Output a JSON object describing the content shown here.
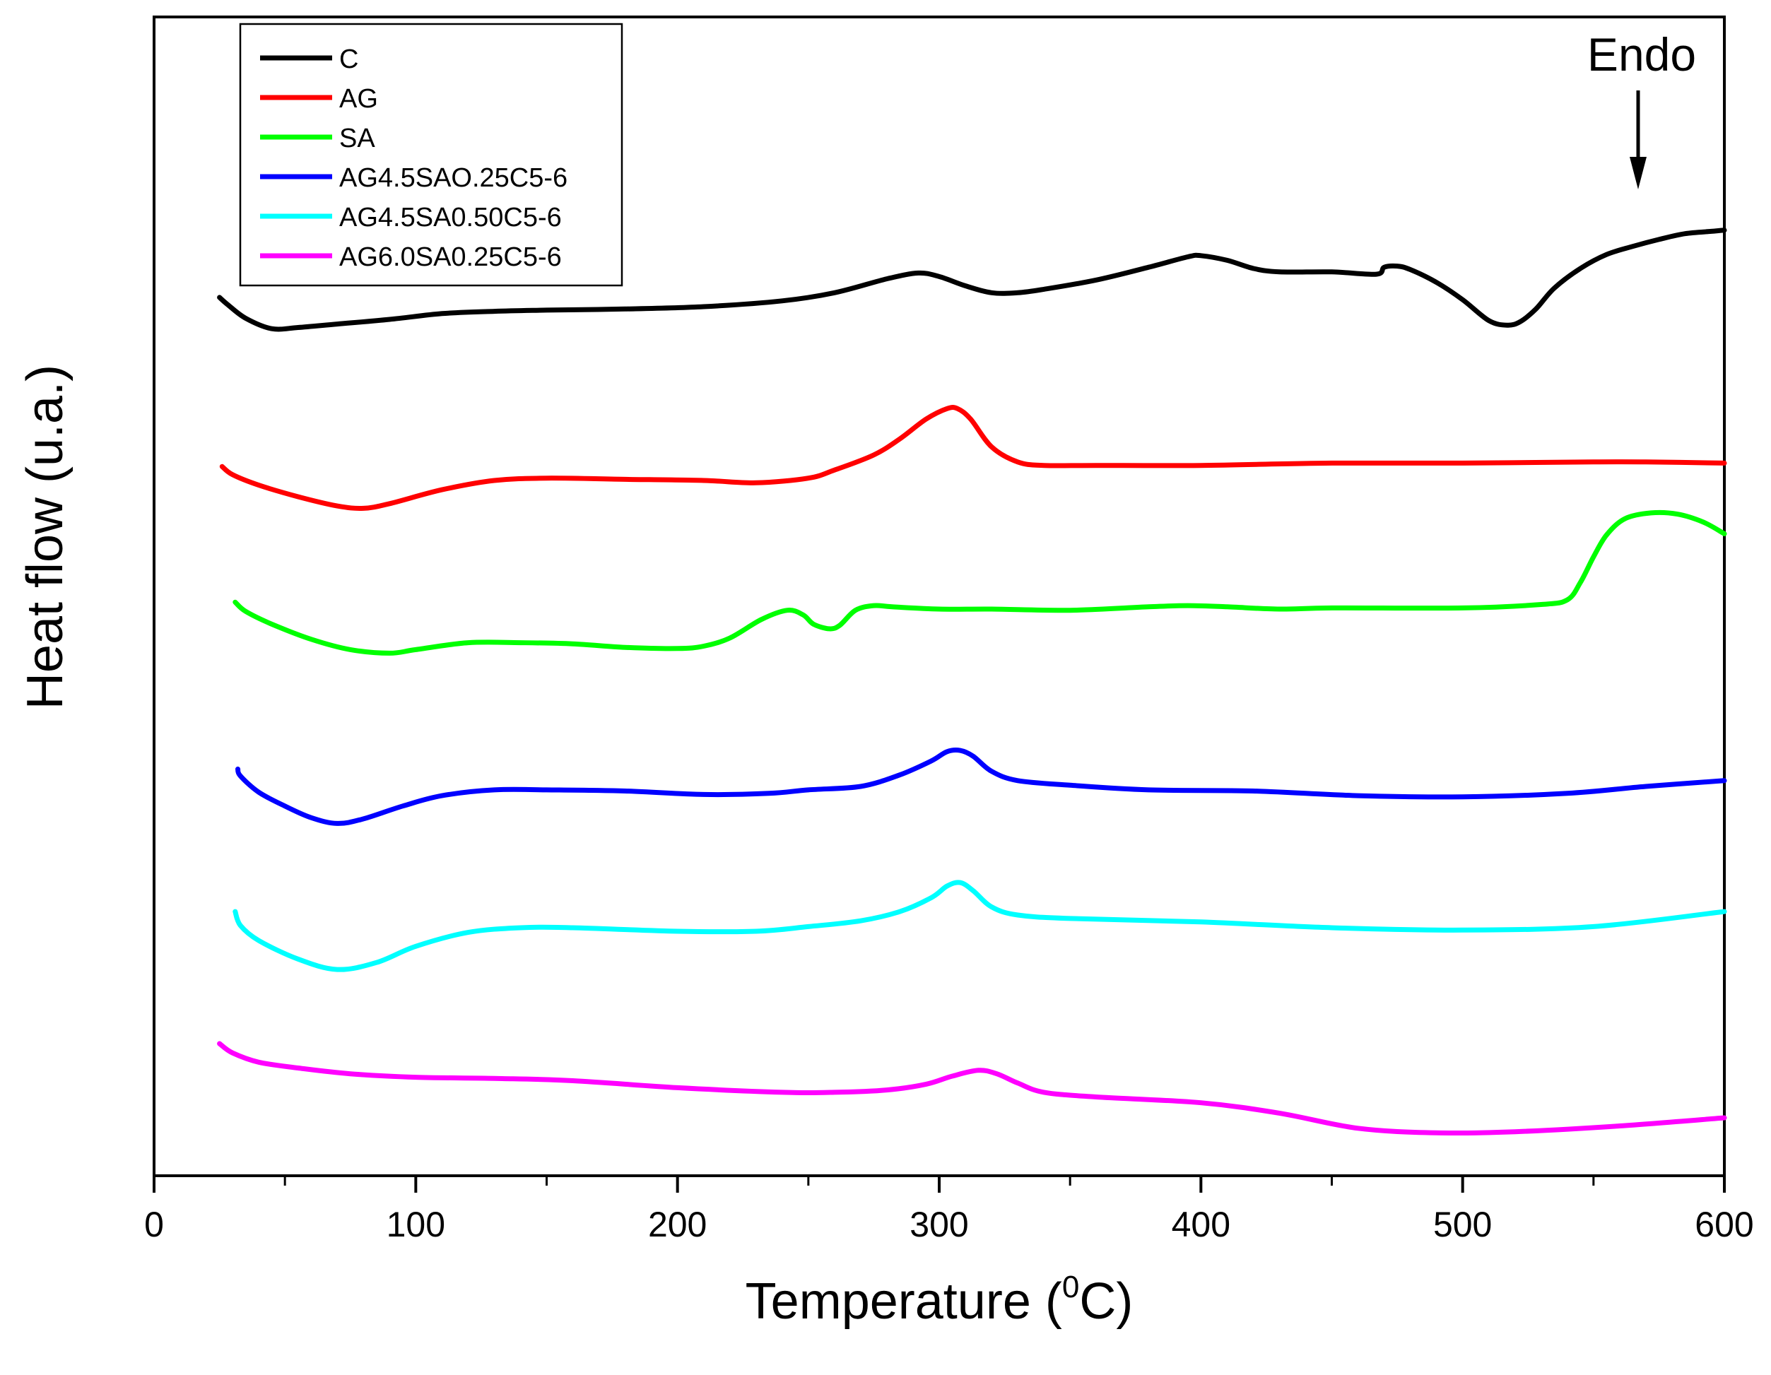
{
  "chart_data": {
    "type": "line",
    "title": "",
    "xlabel": "Temperature (",
    "xlabel_sup": "0",
    "xlabel_unit": "C)",
    "ylabel": "Heat flow (u.a.)",
    "xlim": [
      0,
      600
    ],
    "ylim": [
      0,
      100
    ],
    "x_ticks": [
      0,
      100,
      200,
      300,
      400,
      500,
      600
    ],
    "x_tick_labels": [
      "0",
      "100",
      "200",
      "300",
      "400",
      "500",
      "600"
    ],
    "y_ticks_shown": false,
    "grid": false,
    "legend_position": "top-left",
    "annotation": {
      "text": "Endo",
      "x": 566,
      "arrow": "down"
    },
    "series": [
      {
        "name": "C",
        "color": "#000000",
        "x": [
          25,
          28,
          35,
          45,
          55,
          70,
          90,
          110,
          130,
          150,
          180,
          210,
          240,
          260,
          280,
          292,
          300,
          310,
          320,
          330,
          340,
          360,
          380,
          395,
          400,
          410,
          420,
          430,
          450,
          467,
          470,
          475,
          480,
          490,
          500,
          510,
          517,
          522,
          528,
          535,
          545,
          555,
          565,
          575,
          585,
          595,
          600
        ],
        "y": [
          75.8,
          75.2,
          74.0,
          73.1,
          73.2,
          73.5,
          73.9,
          74.4,
          74.6,
          74.7,
          74.8,
          75.0,
          75.5,
          76.2,
          77.4,
          77.9,
          77.6,
          76.8,
          76.2,
          76.2,
          76.5,
          77.3,
          78.4,
          79.3,
          79.4,
          79.0,
          78.3,
          78.0,
          78.0,
          77.8,
          78.4,
          78.5,
          78.2,
          77.1,
          75.6,
          73.8,
          73.4,
          73.7,
          74.8,
          76.6,
          78.3,
          79.5,
          80.2,
          80.8,
          81.3,
          81.5,
          81.6
        ]
      },
      {
        "name": "AG",
        "color": "#ff0000",
        "x": [
          26,
          30,
          40,
          55,
          70,
          80,
          90,
          110,
          130,
          150,
          180,
          210,
          230,
          250,
          260,
          275,
          285,
          295,
          303,
          307,
          312,
          320,
          330,
          340,
          360,
          400,
          450,
          500,
          550,
          570,
          600
        ],
        "y": [
          61.2,
          60.5,
          59.6,
          58.6,
          57.8,
          57.6,
          58.0,
          59.2,
          60.0,
          60.2,
          60.1,
          60.0,
          59.8,
          60.2,
          60.9,
          62.2,
          63.6,
          65.3,
          66.2,
          66.2,
          65.3,
          62.9,
          61.6,
          61.3,
          61.3,
          61.3,
          61.5,
          61.5,
          61.6,
          61.6,
          61.5
        ]
      },
      {
        "name": "SA",
        "color": "#00ff00",
        "x": [
          31,
          35,
          45,
          60,
          75,
          90,
          100,
          120,
          140,
          160,
          180,
          200,
          210,
          220,
          232,
          242,
          248,
          252,
          258,
          262,
          268,
          275,
          282,
          300,
          320,
          350,
          380,
          395,
          410,
          430,
          450,
          500,
          530,
          540,
          545,
          550,
          555,
          562,
          572,
          582,
          592,
          600
        ],
        "y": [
          49.5,
          48.7,
          47.6,
          46.3,
          45.4,
          45.1,
          45.4,
          46.0,
          46.0,
          45.9,
          45.6,
          45.5,
          45.7,
          46.4,
          48.0,
          48.8,
          48.4,
          47.6,
          47.2,
          47.5,
          48.8,
          49.2,
          49.1,
          48.9,
          48.9,
          48.8,
          49.1,
          49.2,
          49.1,
          48.9,
          49.0,
          49.0,
          49.3,
          49.7,
          51.2,
          53.4,
          55.3,
          56.7,
          57.2,
          57.1,
          56.4,
          55.4
        ]
      },
      {
        "name": "AG4.5SAO.25C5-6",
        "color": "#0000ff",
        "x": [
          32,
          33,
          40,
          50,
          60,
          70,
          80,
          95,
          110,
          130,
          150,
          180,
          210,
          235,
          250,
          270,
          285,
          297,
          303,
          308,
          313,
          320,
          330,
          350,
          380,
          420,
          460,
          500,
          540,
          570,
          600
        ],
        "y": [
          35.1,
          34.5,
          33.1,
          31.9,
          30.9,
          30.4,
          30.8,
          31.9,
          32.8,
          33.3,
          33.3,
          33.2,
          32.9,
          33.0,
          33.3,
          33.6,
          34.6,
          35.8,
          36.6,
          36.7,
          36.2,
          34.9,
          34.1,
          33.7,
          33.3,
          33.2,
          32.8,
          32.7,
          33.0,
          33.6,
          34.1
        ]
      },
      {
        "name": "AG4.5SA0.50C5-6",
        "color": "#00ffff",
        "x": [
          31,
          33,
          40,
          55,
          70,
          85,
          100,
          120,
          140,
          160,
          200,
          230,
          250,
          270,
          285,
          297,
          303,
          308,
          313,
          320,
          330,
          350,
          400,
          450,
          500,
          550,
          600
        ],
        "y": [
          22.8,
          21.6,
          20.3,
          18.7,
          17.8,
          18.4,
          19.8,
          21.0,
          21.4,
          21.4,
          21.1,
          21.1,
          21.5,
          22.0,
          22.8,
          24.0,
          25.0,
          25.3,
          24.6,
          23.2,
          22.5,
          22.2,
          21.9,
          21.4,
          21.2,
          21.5,
          22.8
        ]
      },
      {
        "name": "AG6.0SA0.25C5-6",
        "color": "#ff00ff",
        "x": [
          25,
          30,
          40,
          55,
          75,
          100,
          130,
          160,
          200,
          240,
          260,
          280,
          295,
          305,
          315,
          322,
          330,
          340,
          360,
          400,
          430,
          460,
          490,
          520,
          560,
          600
        ],
        "y": [
          11.4,
          10.6,
          9.8,
          9.3,
          8.8,
          8.5,
          8.4,
          8.2,
          7.6,
          7.2,
          7.2,
          7.4,
          7.9,
          8.6,
          9.1,
          8.8,
          8.0,
          7.2,
          6.8,
          6.3,
          5.4,
          4.1,
          3.7,
          3.8,
          4.3,
          5.0
        ]
      }
    ]
  }
}
